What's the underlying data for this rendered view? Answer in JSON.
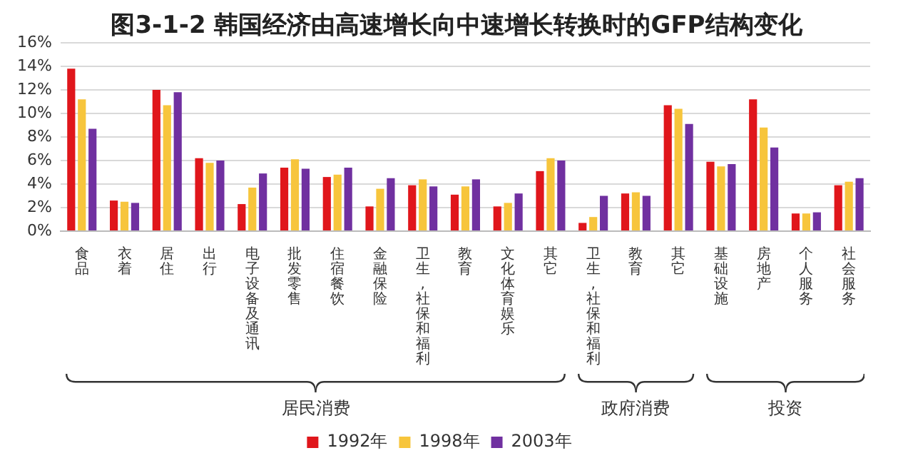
{
  "chart_data": {
    "type": "bar",
    "title": "图3-1-2 韩国经济由高速增长向中速增长转换时的GFP结构变化",
    "categories": [
      "食品",
      "衣着",
      "居住",
      "出行",
      "电子设备及通讯",
      "批发零售",
      "住宿餐饮",
      "金融保险",
      "卫生,社保和福利",
      "教育",
      "文化体育娱乐",
      "其它",
      "卫生,社保和福利",
      "教育",
      "其它",
      "基础设施",
      "房地产",
      "个人服务",
      "社会服务"
    ],
    "series": [
      {
        "name": "1992年",
        "color": "#e0161b",
        "values": [
          13.8,
          2.6,
          12.0,
          6.2,
          2.3,
          5.4,
          4.6,
          2.1,
          3.9,
          3.1,
          2.1,
          5.1,
          0.7,
          3.2,
          10.7,
          5.9,
          11.2,
          1.5,
          3.9
        ]
      },
      {
        "name": "1998年",
        "color": "#f7c53c",
        "values": [
          11.2,
          2.5,
          10.7,
          5.8,
          3.7,
          6.1,
          4.8,
          3.6,
          4.4,
          3.8,
          2.4,
          6.2,
          1.2,
          3.3,
          10.4,
          5.5,
          8.8,
          1.5,
          4.2
        ]
      },
      {
        "name": "2003年",
        "color": "#7030a0",
        "values": [
          8.7,
          2.4,
          11.8,
          6.0,
          4.9,
          5.3,
          5.4,
          4.5,
          3.8,
          4.4,
          3.2,
          6.0,
          3.0,
          3.0,
          9.1,
          5.7,
          7.1,
          1.6,
          4.5
        ]
      }
    ],
    "ylim": [
      0,
      16
    ],
    "yticks": [
      {
        "value": 0,
        "label": "0%"
      },
      {
        "value": 2,
        "label": "2%"
      },
      {
        "value": 4,
        "label": "4%"
      },
      {
        "value": 6,
        "label": "6%"
      },
      {
        "value": 8,
        "label": "8%"
      },
      {
        "value": 10,
        "label": "10%"
      },
      {
        "value": 12,
        "label": "12%"
      },
      {
        "value": 14,
        "label": "14%"
      },
      {
        "value": 16,
        "label": "16%"
      }
    ],
    "grid": "y",
    "legend": "bottom",
    "annotations": [
      "居民消费",
      "政府消费",
      "投资"
    ]
  }
}
